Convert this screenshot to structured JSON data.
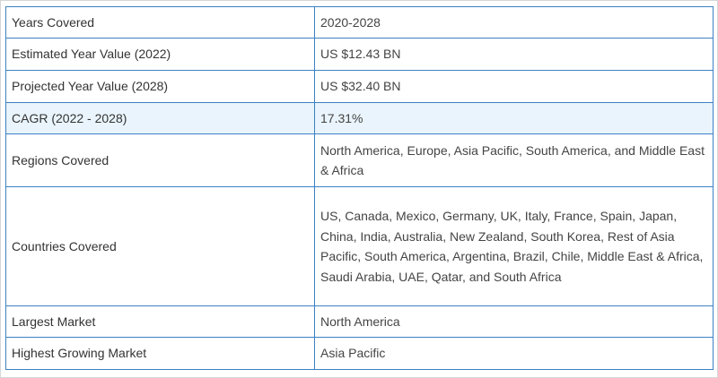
{
  "table": {
    "rows": [
      {
        "label": "Years Covered",
        "value": "2020-2028",
        "highlight": false
      },
      {
        "label": "Estimated Year Value (2022)",
        "value": "US $12.43 BN",
        "highlight": false
      },
      {
        "label": "Projected Year Value (2028)",
        "value": "US $32.40 BN",
        "highlight": false
      },
      {
        "label": "CAGR (2022 - 2028)",
        "value": "17.31%",
        "highlight": true
      },
      {
        "label": "Regions Covered",
        "value": "North America, Europe, Asia Pacific, South America, and Middle East & Africa",
        "highlight": false
      },
      {
        "label": "Countries Covered",
        "value": "US, Canada, Mexico, Germany, UK, Italy, France, Spain, Japan, China, India, Australia, New Zealand, South Korea, Rest of Asia Pacific, South America, Argentina, Brazil, Chile, Middle East & Africa, Saudi Arabia, UAE, Qatar, and South Africa",
        "highlight": false
      },
      {
        "label": "Largest Market",
        "value": "North America",
        "highlight": false
      },
      {
        "label": "Highest Growing Market",
        "value": "Asia Pacific",
        "highlight": false
      }
    ]
  },
  "colors": {
    "border": "#3b82c4",
    "highlight_row": "#e9f4fc",
    "text": "#333333"
  }
}
